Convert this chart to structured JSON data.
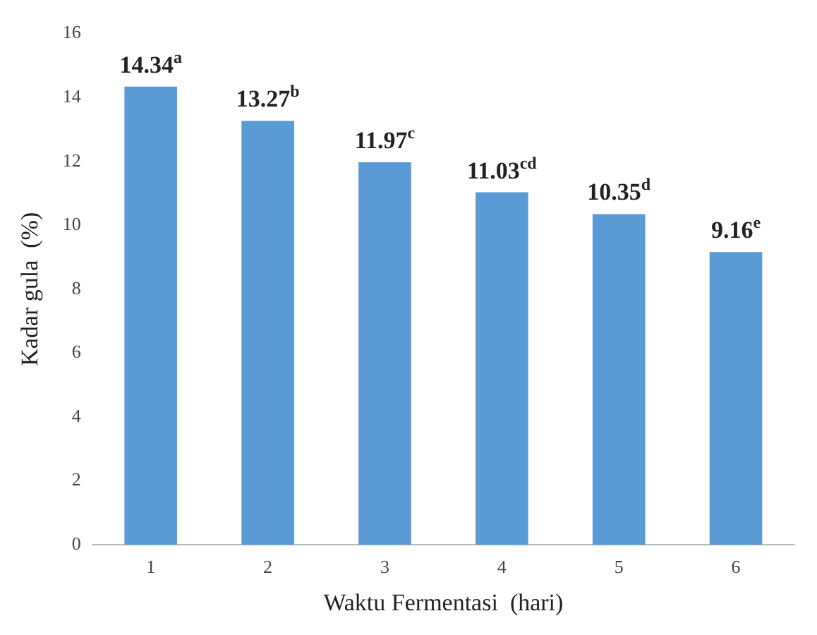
{
  "chart_data": {
    "type": "bar",
    "xlabel": "Waktu Fermentasi  (hari)",
    "ylabel": "Kadar gula  (%)",
    "categories": [
      "1",
      "2",
      "3",
      "4",
      "5",
      "6"
    ],
    "values": [
      14.34,
      13.27,
      11.97,
      11.03,
      10.35,
      9.16
    ],
    "value_labels": [
      "14.34$^{a}$",
      "13.27$^{b}$",
      "11.97$^{c}$",
      "11.03$^{cd}$",
      "10.35$^{d}$",
      "9.16$^{e}$"
    ],
    "color": "#5b9bd5",
    "ylim": [
      0,
      16
    ],
    "yticks": [
      0,
      2,
      4,
      6,
      8,
      10,
      12,
      14,
      16
    ],
    "grid": false,
    "legend": false
  }
}
